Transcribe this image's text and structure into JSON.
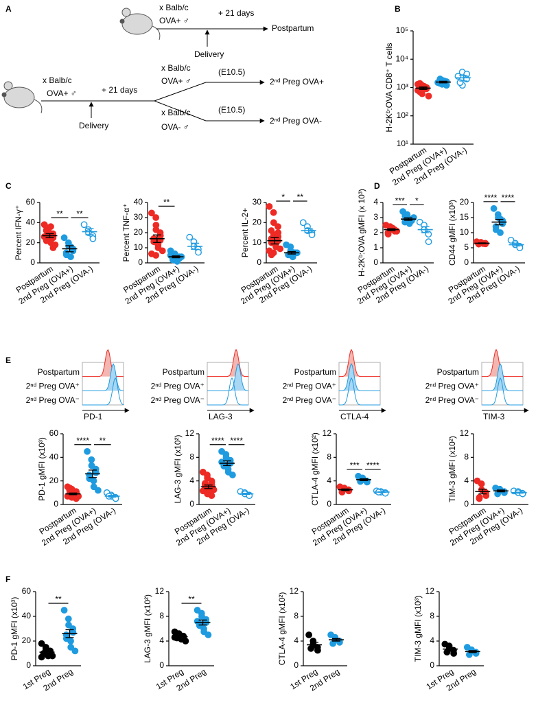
{
  "panel_labels": [
    "A",
    "B",
    "C",
    "D",
    "E",
    "F"
  ],
  "diagram": {
    "top": {
      "cross": "x Balb/c",
      "male": "OVA+ ♂",
      "days": "+ 21 days",
      "delivery": "Delivery",
      "end": "Postpartum"
    },
    "bottom": {
      "cross": "x Balb/c",
      "male": "OVA+ ♂",
      "days": "+ 21 days",
      "delivery": "Delivery",
      "upper_cross": "x Balb/c",
      "upper_male": "OVA+ ♂",
      "upper_day": "(E10.5)",
      "upper_end": "2ⁿᵈ Preg OVA+",
      "lower_cross": "x Balb/c",
      "lower_male": "OVA- ♂",
      "lower_day": "(E10.5)",
      "lower_end": "2ⁿᵈ Preg OVA-"
    }
  },
  "histograms": [
    {
      "labels": [
        "Postpartum",
        "2ⁿᵈ Preg OVA⁺",
        "2ⁿᵈ Preg OVA⁻"
      ],
      "marker": "PD-1"
    },
    {
      "labels": [
        "Postpartum",
        "2ⁿᵈ Preg OVA⁺",
        "2ⁿᵈ Preg OVA⁻"
      ],
      "marker": "LAG-3"
    },
    {
      "labels": [
        "Postpartum",
        "2ⁿᵈ Preg OVA⁺",
        "2ⁿᵈ Preg OVA⁻"
      ],
      "marker": "CTLA-4"
    },
    {
      "labels": [
        "Postpartum",
        "2ⁿᵈ Preg OVA⁺",
        "2ⁿᵈ Preg OVA⁻"
      ],
      "marker": "TIM-3"
    }
  ],
  "chart_data": [
    {
      "type": "dot",
      "y_label": "H-2Kᵇ:OVA CD8⁺ T cells",
      "log_scale": true,
      "categories": [
        "Postpartum",
        "2nd Preg (OVA+)",
        "2nd Preg (OVA-)"
      ],
      "colors": [
        "#ee2a24",
        "#1f9be0",
        "#1f9be0"
      ],
      "filled": [
        true,
        true,
        false
      ],
      "values": [
        [
          800,
          1200,
          600,
          900,
          1000,
          1400,
          700,
          1100,
          950,
          500,
          1300,
          850
        ],
        [
          1500,
          1300,
          1800,
          1200,
          1600,
          1400,
          2000,
          1700
        ],
        [
          2500,
          3500,
          1200,
          2000,
          3000,
          1500
        ]
      ],
      "means": [
        950,
        1560,
        2200
      ],
      "errors": [
        90,
        100,
        500
      ],
      "ylim": [
        10,
        100000
      ],
      "yticks": [
        {
          "value": 10,
          "label": "10¹"
        },
        {
          "value": 100,
          "label": "10²"
        },
        {
          "value": 1000,
          "label": "10³"
        },
        {
          "value": 10000,
          "label": "10⁴"
        },
        {
          "value": 100000,
          "label": "10⁵"
        }
      ],
      "annotations": []
    },
    {
      "type": "dot",
      "y_label": "Percent IFN-γ⁺",
      "log_scale": false,
      "categories": [
        "Postpartum",
        "2nd Preg (OVA+)",
        "2nd Preg (OVA-)"
      ],
      "colors": [
        "#ee2a24",
        "#1f9be0",
        "#1f9be0"
      ],
      "filled": [
        true,
        true,
        false
      ],
      "values": [
        [
          38,
          35,
          30,
          27,
          25,
          22,
          33,
          28,
          20,
          18,
          26,
          31,
          24,
          29,
          15,
          32,
          23,
          36
        ],
        [
          25,
          20,
          17,
          14,
          12,
          10,
          8,
          6,
          16
        ],
        [
          38,
          33,
          30,
          27,
          24
        ]
      ],
      "means": [
        27,
        14,
        31
      ],
      "errors": [
        2,
        3,
        3
      ],
      "ylim": [
        0,
        60
      ],
      "yticks": [
        0,
        20,
        40,
        60
      ],
      "annotations": [
        {
          "text": "**",
          "between": [
            0,
            1
          ]
        },
        {
          "text": "**",
          "between": [
            1,
            2
          ]
        }
      ]
    },
    {
      "type": "dot",
      "y_label": "Percent TNF-α⁺",
      "log_scale": false,
      "categories": [
        "Postpartum",
        "2nd Preg (OVA+)",
        "2nd Preg (OVA-)"
      ],
      "colors": [
        "#ee2a24",
        "#1f9be0",
        "#1f9be0"
      ],
      "filled": [
        true,
        true,
        false
      ],
      "values": [
        [
          33,
          30,
          25,
          20,
          18,
          16,
          14,
          12,
          10,
          8,
          6,
          5,
          22,
          15
        ],
        [
          8,
          6,
          5,
          4,
          3,
          3,
          2,
          2,
          1,
          4,
          5,
          3
        ],
        [
          17,
          14,
          11,
          9,
          7
        ]
      ],
      "means": [
        16,
        4,
        11
      ],
      "errors": [
        2.5,
        0.6,
        2
      ],
      "ylim": [
        0,
        40
      ],
      "yticks": [
        0,
        10,
        20,
        30,
        40
      ],
      "annotations": [
        {
          "text": "**",
          "between": [
            0,
            1
          ]
        }
      ]
    },
    {
      "type": "dot",
      "y_label": "Percent IL-2+",
      "log_scale": false,
      "categories": [
        "Postpartum",
        "2nd Preg (OVA+)",
        "2nd Preg (OVA-)"
      ],
      "colors": [
        "#ee2a24",
        "#1f9be0",
        "#1f9be0"
      ],
      "filled": [
        true,
        true,
        false
      ],
      "values": [
        [
          28,
          25,
          20,
          18,
          15,
          12,
          10,
          9,
          8,
          7,
          6,
          5,
          14,
          11,
          13,
          16,
          4
        ],
        [
          9,
          8,
          6,
          5,
          5,
          4,
          4,
          3,
          3,
          5
        ],
        [
          20,
          18,
          16,
          15,
          14
        ]
      ],
      "means": [
        11,
        5,
        16
      ],
      "errors": [
        1.6,
        0.6,
        1
      ],
      "ylim": [
        0,
        30
      ],
      "yticks": [
        0,
        10,
        20,
        30
      ],
      "annotations": [
        {
          "text": "*",
          "between": [
            0,
            1
          ]
        },
        {
          "text": "**",
          "between": [
            1,
            2
          ]
        }
      ]
    },
    {
      "type": "dot",
      "y_label": "H-2Kᵇ:OVA gMFI (x 10³)",
      "log_scale": false,
      "categories": [
        "Postpartum",
        "2nd Preg (OVA+)",
        "2nd Preg (OVA-)"
      ],
      "colors": [
        "#ee2a24",
        "#1f9be0",
        "#1f9be0"
      ],
      "filled": [
        true,
        true,
        false
      ],
      "values": [
        [
          2.5,
          2.4,
          2.3,
          2.2,
          2.1,
          2.0,
          1.9,
          2.2,
          2.3,
          2.1
        ],
        [
          3.4,
          3.2,
          3.0,
          2.9,
          2.8,
          2.7,
          3.1,
          2.9,
          2.6,
          3.0
        ],
        [
          2.7,
          2.5,
          2.2,
          1.9,
          1.4
        ]
      ],
      "means": [
        2.2,
        2.9,
        2.2
      ],
      "errors": [
        0.06,
        0.08,
        0.2
      ],
      "ylim": [
        0,
        4
      ],
      "yticks": [
        0,
        1,
        2,
        3,
        4
      ],
      "annotations": [
        {
          "text": "***",
          "between": [
            0,
            1
          ]
        },
        {
          "text": "*",
          "between": [
            1,
            2
          ]
        }
      ]
    },
    {
      "type": "dot",
      "y_label": "CD44 gMFI (x10³)",
      "log_scale": false,
      "categories": [
        "Postpartum",
        "2nd Preg (OVA+)",
        "2nd Preg (OVA-)"
      ],
      "colors": [
        "#ee2a24",
        "#1f9be0",
        "#1f9be0"
      ],
      "filled": [
        true,
        true,
        false
      ],
      "values": [
        [
          7,
          6.8,
          6.6,
          6.5,
          6.3,
          6.2,
          6.7,
          6.4
        ],
        [
          18,
          16,
          15,
          14,
          13,
          12,
          11,
          10,
          14.5
        ],
        [
          7.5,
          6.5,
          6,
          5.5,
          5
        ]
      ],
      "means": [
        6.5,
        13.5,
        6
      ],
      "errors": [
        0.1,
        0.9,
        0.4
      ],
      "ylim": [
        0,
        20
      ],
      "yticks": [
        0,
        5,
        10,
        15,
        20
      ],
      "annotations": [
        {
          "text": "****",
          "between": [
            0,
            1
          ]
        },
        {
          "text": "****",
          "between": [
            1,
            2
          ]
        }
      ]
    },
    {
      "type": "dot",
      "y_label": "PD-1 gMFI (x10³)",
      "log_scale": false,
      "categories": [
        "Postpartum",
        "2nd Preg (OVA+)",
        "2nd Preg (OVA-)"
      ],
      "colors": [
        "#ee2a24",
        "#1f9be0",
        "#1f9be0"
      ],
      "filled": [
        true,
        true,
        false
      ],
      "values": [
        [
          15,
          13,
          12,
          11,
          10,
          9,
          9,
          8,
          8,
          7,
          7,
          6,
          6,
          5,
          10,
          12,
          14,
          9
        ],
        [
          45,
          38,
          33,
          30,
          27,
          25,
          22,
          20,
          15,
          12
        ],
        [
          10,
          8,
          7,
          6,
          5,
          7
        ]
      ],
      "means": [
        9,
        26,
        7
      ],
      "errors": [
        0.7,
        3.2,
        0.7
      ],
      "ylim": [
        0,
        60
      ],
      "yticks": [
        0,
        20,
        40,
        60
      ],
      "annotations": [
        {
          "text": "****",
          "between": [
            0,
            1
          ]
        },
        {
          "text": "**",
          "between": [
            1,
            2
          ]
        }
      ]
    },
    {
      "type": "dot",
      "y_label": "LAG-3 gMFI (x10²)",
      "log_scale": false,
      "categories": [
        "Postpartum",
        "2nd Preg (OVA+)",
        "2nd Preg (OVA-)"
      ],
      "colors": [
        "#ee2a24",
        "#1f9be0",
        "#1f9be0"
      ],
      "filled": [
        true,
        true,
        false
      ],
      "values": [
        [
          5.5,
          5,
          4.5,
          4,
          3.8,
          3.5,
          3.2,
          3,
          2.8,
          2.5,
          2.3,
          2,
          1.8,
          1.5,
          3.3,
          2.7,
          3.6,
          2.2
        ],
        [
          9,
          8.5,
          8,
          7.5,
          7,
          6.8,
          6.5,
          6,
          5.5,
          5,
          7.2
        ],
        [
          2.2,
          2,
          1.8,
          1.6,
          1.5
        ]
      ],
      "means": [
        3,
        7,
        1.8
      ],
      "errors": [
        0.3,
        0.4,
        0.1
      ],
      "ylim": [
        0,
        12
      ],
      "yticks": [
        0,
        4,
        8,
        12
      ],
      "annotations": [
        {
          "text": "****",
          "between": [
            0,
            1
          ]
        },
        {
          "text": "****",
          "between": [
            1,
            2
          ]
        }
      ]
    },
    {
      "type": "dot",
      "y_label": "CTLA-4 gMFI (x10²)",
      "log_scale": false,
      "categories": [
        "Postpartum",
        "2nd Preg (OVA+)",
        "2nd Preg (OVA-)"
      ],
      "colors": [
        "#ee2a24",
        "#1f9be0",
        "#1f9be0"
      ],
      "filled": [
        true,
        true,
        false
      ],
      "values": [
        [
          3,
          2.8,
          2.6,
          2.5,
          2.3,
          2.1
        ],
        [
          4.8,
          4.5,
          4.2,
          4,
          3.8,
          3.9
        ],
        [
          2.3,
          2.2,
          2.1,
          2.0,
          1.9,
          2.1
        ]
      ],
      "means": [
        2.5,
        4.2,
        2.1
      ],
      "errors": [
        0.13,
        0.15,
        0.05
      ],
      "ylim": [
        0,
        12
      ],
      "yticks": [
        0,
        4,
        8,
        12
      ],
      "annotations": [
        {
          "text": "***",
          "between": [
            0,
            1
          ]
        },
        {
          "text": "****",
          "between": [
            1,
            2
          ]
        }
      ]
    },
    {
      "type": "dot",
      "y_label": "TIM-3 gMFI (x10²)",
      "log_scale": false,
      "categories": [
        "Postpartum",
        "2nd Preg (OVA+)",
        "2nd Preg (OVA-)"
      ],
      "colors": [
        "#ee2a24",
        "#1f9be0",
        "#1f9be0"
      ],
      "filled": [
        true,
        true,
        false
      ],
      "values": [
        [
          4,
          3.5,
          2.5,
          2,
          1.5,
          1,
          1.2
        ],
        [
          2.8,
          2.6,
          2.4,
          2.2,
          2.0,
          1.8
        ],
        [
          2.3,
          2.2,
          2.0,
          1.9,
          1.8
        ]
      ],
      "means": [
        2.2,
        2.3,
        2.0
      ],
      "errors": [
        0.4,
        0.15,
        0.08
      ],
      "ylim": [
        0,
        12
      ],
      "yticks": [
        0,
        4,
        8,
        12
      ],
      "annotations": []
    },
    {
      "type": "dot",
      "y_label": "PD-1 gMFI (x10³)",
      "log_scale": false,
      "categories": [
        "1st Preg",
        "2nd Preg"
      ],
      "colors": [
        "#000000",
        "#1f9be0"
      ],
      "filled": [
        true,
        true
      ],
      "values": [
        [
          18,
          15,
          14,
          12,
          11,
          10,
          10,
          9,
          8,
          8,
          7,
          12,
          13
        ],
        [
          45,
          38,
          33,
          30,
          27,
          25,
          22,
          20,
          15,
          12
        ]
      ],
      "means": [
        11,
        26
      ],
      "errors": [
        0.9,
        3.2
      ],
      "ylim": [
        0,
        60
      ],
      "yticks": [
        0,
        20,
        40,
        60
      ],
      "annotations": [
        {
          "text": "**",
          "between": [
            0,
            1
          ]
        }
      ]
    },
    {
      "type": "dot",
      "y_label": "LAG-3 gMFI (x10²)",
      "log_scale": false,
      "categories": [
        "1st Preg",
        "2nd Preg"
      ],
      "colors": [
        "#000000",
        "#1f9be0"
      ],
      "filled": [
        true,
        true
      ],
      "values": [
        [
          5.5,
          5.2,
          5,
          4.8,
          4.7,
          4.6,
          4.5,
          4.4,
          4.3,
          4,
          4.6,
          4.9
        ],
        [
          9,
          8.5,
          8,
          7.5,
          7,
          6.8,
          6.5,
          6,
          5.5,
          5,
          7.2
        ]
      ],
      "means": [
        4.7,
        7
      ],
      "errors": [
        0.12,
        0.4
      ],
      "ylim": [
        0,
        12
      ],
      "yticks": [
        0,
        4,
        8,
        12
      ],
      "annotations": [
        {
          "text": "**",
          "between": [
            0,
            1
          ]
        }
      ]
    },
    {
      "type": "dot",
      "y_label": "CTLA-4 gMFI (x10²)",
      "log_scale": false,
      "categories": [
        "1st Preg",
        "2nd Preg"
      ],
      "colors": [
        "#000000",
        "#1f9be0"
      ],
      "filled": [
        true,
        true
      ],
      "values": [
        [
          5,
          4,
          3.5,
          3,
          2.5,
          2.8
        ],
        [
          5,
          4.6,
          4.2,
          4,
          3.8,
          3.6
        ]
      ],
      "means": [
        3.4,
        4.2
      ],
      "errors": [
        0.4,
        0.2
      ],
      "ylim": [
        0,
        12
      ],
      "yticks": [
        0,
        4,
        8,
        12
      ],
      "annotations": []
    },
    {
      "type": "dot",
      "y_label": "TIM-3 gMFI (x10³)",
      "log_scale": false,
      "categories": [
        "1st Preg",
        "2nd Preg"
      ],
      "colors": [
        "#000000",
        "#1f9be0"
      ],
      "filled": [
        true,
        true
      ],
      "values": [
        [
          3.5,
          3.2,
          2.8,
          2.5,
          2,
          2.2
        ],
        [
          3,
          2.6,
          2.4,
          2.2,
          2,
          1.8
        ]
      ],
      "means": [
        2.7,
        2.3
      ],
      "errors": [
        0.25,
        0.15
      ],
      "ylim": [
        0,
        12
      ],
      "yticks": [
        0,
        4,
        8,
        12
      ],
      "annotations": []
    }
  ]
}
